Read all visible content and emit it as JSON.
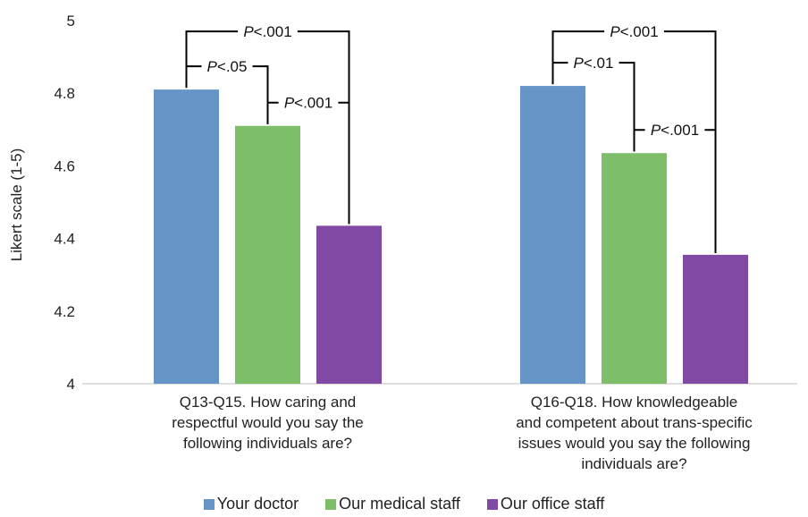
{
  "chart_data": {
    "type": "bar",
    "ylabel": "Likert scale (1-5)",
    "ylim": [
      4,
      5
    ],
    "yticks": [
      "4",
      "4.2",
      "4.4",
      "4.6",
      "4.8",
      "5"
    ],
    "categories": [
      "Q13-Q15. How caring and respectful would you say the following individuals are?",
      "Q16-Q18. How knowledgeable and competent about trans-specific issues would you say the following individuals are?"
    ],
    "category_lines": [
      [
        "Q13-Q15. How caring and",
        "respectful would you say the",
        "following individuals are?"
      ],
      [
        "Q16-Q18. How knowledgeable",
        "and competent about trans-specific",
        "issues would you say the following",
        "individuals are?"
      ]
    ],
    "series": [
      {
        "name": "Your doctor",
        "color": "#6495c6",
        "values": [
          4.81,
          4.82
        ]
      },
      {
        "name": "Our medical staff",
        "color": "#7dbe69",
        "values": [
          4.71,
          4.635
        ]
      },
      {
        "name": "Our office staff",
        "color": "#8049a4",
        "values": [
          4.435,
          4.355
        ]
      }
    ],
    "significance": [
      {
        "group": 0,
        "from": 0,
        "to": 2,
        "level": 1,
        "prefix": "P",
        "value": "<.001"
      },
      {
        "group": 0,
        "from": 0,
        "to": 1,
        "level": 0,
        "prefix": "P",
        "value": "<.05"
      },
      {
        "group": 0,
        "from": 1,
        "to": 2,
        "level": 0,
        "prefix": "P",
        "value": "<.001"
      },
      {
        "group": 1,
        "from": 0,
        "to": 2,
        "level": 1,
        "prefix": "P",
        "value": "<.001"
      },
      {
        "group": 1,
        "from": 0,
        "to": 1,
        "level": 0,
        "prefix": "P",
        "value": "<.01"
      },
      {
        "group": 1,
        "from": 1,
        "to": 2,
        "level": 0,
        "prefix": "P",
        "value": "<.001"
      }
    ],
    "legend_position": "bottom",
    "grid": false
  }
}
